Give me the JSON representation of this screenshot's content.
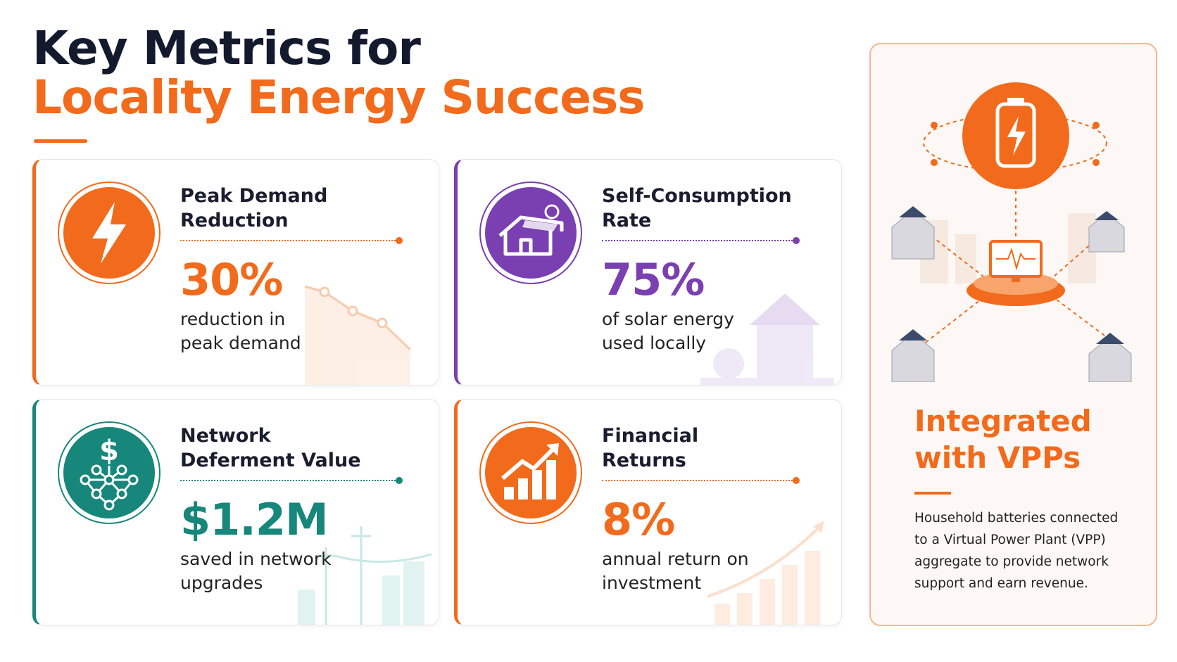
{
  "header": {
    "title_line1": "Key Metrics for",
    "title_line2": "Locality Energy Success"
  },
  "metrics": [
    {
      "title_lines": [
        "Peak Demand",
        "Reduction"
      ],
      "value": "30%",
      "description_lines": [
        "reduction in",
        "peak demand"
      ]
    },
    {
      "title_lines": [
        "Self-Consumption",
        "Rate"
      ],
      "value": "75%",
      "description_lines": [
        "of solar energy",
        "used locally"
      ]
    },
    {
      "title_lines": [
        "Network",
        "Deferment Value"
      ],
      "value": "$1.2M",
      "description_lines": [
        "saved in network",
        "upgrades"
      ]
    },
    {
      "title_lines": [
        "Financial",
        "Returns"
      ],
      "value": "8%",
      "description_lines": [
        "annual return on",
        "investment"
      ]
    }
  ],
  "sidebar": {
    "title_lines": [
      "Integrated",
      "with VPPs"
    ],
    "description_lines": [
      "Household batteries connected",
      "to a Virtual Power Plant (VPP)",
      "aggregate to provide network",
      "support and earn revenue."
    ]
  }
}
